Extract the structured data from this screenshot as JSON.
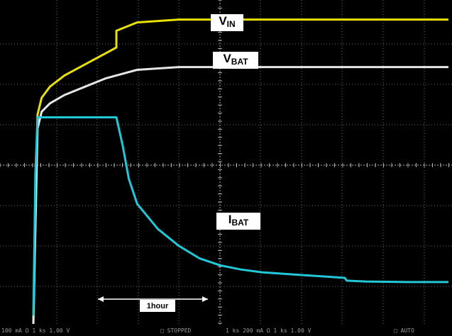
{
  "chart_data": {
    "type": "line",
    "title": "",
    "xlabel": "",
    "ylabel": "",
    "grid": true,
    "background": "#000000",
    "grid_color": "#8a8a8a",
    "time_scale_label": "1hour",
    "series": [
      {
        "name_main": "V",
        "name_sub": "IN",
        "color": "#e8e000",
        "points": [
          [
            0.0,
            0.0
          ],
          [
            0.2,
            7.5
          ],
          [
            0.4,
            8.1
          ],
          [
            0.8,
            8.5
          ],
          [
            1.5,
            8.9
          ],
          [
            2.5,
            9.3
          ],
          [
            3.5,
            9.7
          ],
          [
            4.0,
            9.9
          ],
          [
            4.0,
            10.5
          ],
          [
            5.0,
            10.8
          ],
          [
            7.0,
            10.9
          ],
          [
            10.0,
            10.9
          ],
          [
            15.0,
            10.9
          ],
          [
            20.0,
            10.9
          ]
        ]
      },
      {
        "name_main": "V",
        "name_sub": "BAT",
        "color": "#e6e6e6",
        "points": [
          [
            0.0,
            0.0
          ],
          [
            0.2,
            7.0
          ],
          [
            0.4,
            7.6
          ],
          [
            0.8,
            7.9
          ],
          [
            1.5,
            8.2
          ],
          [
            2.5,
            8.5
          ],
          [
            3.5,
            8.8
          ],
          [
            4.0,
            8.9
          ],
          [
            5.0,
            9.1
          ],
          [
            7.0,
            9.2
          ],
          [
            10.0,
            9.2
          ],
          [
            15.0,
            9.2
          ],
          [
            20.0,
            9.2
          ]
        ]
      },
      {
        "name_main": "I",
        "name_sub": "BAT",
        "color": "#22c8d8",
        "points": [
          [
            0.0,
            0.3
          ],
          [
            0.1,
            5.4
          ],
          [
            0.2,
            7.4
          ],
          [
            1.0,
            7.4
          ],
          [
            4.0,
            7.4
          ],
          [
            4.3,
            6.4
          ],
          [
            4.6,
            5.2
          ],
          [
            5.0,
            4.3
          ],
          [
            6.0,
            3.4
          ],
          [
            7.0,
            2.8
          ],
          [
            8.0,
            2.35
          ],
          [
            9.0,
            2.1
          ],
          [
            10.0,
            1.95
          ],
          [
            11.0,
            1.85
          ],
          [
            12.0,
            1.8
          ],
          [
            13.0,
            1.75
          ],
          [
            14.0,
            1.7
          ],
          [
            15.0,
            1.65
          ],
          [
            15.1,
            1.55
          ],
          [
            16.0,
            1.52
          ],
          [
            18.0,
            1.5
          ],
          [
            20.0,
            1.5
          ]
        ]
      }
    ],
    "xlim": [
      0,
      20
    ],
    "ylim": [
      0,
      11.5
    ]
  },
  "status": {
    "ch1": "100 mA  Ω  1 ks  1.00 V",
    "stopped": "□   STOPPED",
    "ch2": "1 ks 200 mA  Ω  1 ks  1.00 V",
    "auto": "□   AUTO"
  }
}
